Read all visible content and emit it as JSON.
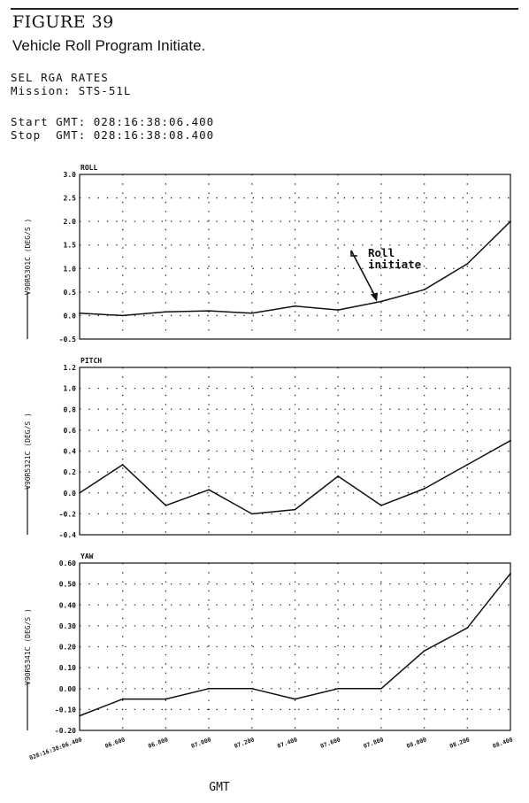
{
  "figure": {
    "number": "FIGURE 39",
    "caption": "Vehicle Roll Program Initiate."
  },
  "header": {
    "title": "SEL RGA RATES",
    "mission": "Mission: STS-51L",
    "start": "Start GMT: 028:16:38:06.400",
    "stop": "Stop  GMT: 028:16:38:08.400"
  },
  "chart_data": [
    {
      "type": "line",
      "title": "ROLL",
      "ylabel": "V90R5301C (DEG/S   )",
      "ylim": [
        -0.5,
        3.0
      ],
      "y_ticks": [
        "3.0",
        "2.5",
        "2.0",
        "1.5",
        "1.0",
        "0.5",
        "0.0",
        "-0.5"
      ],
      "x": [
        0,
        0.2,
        0.4,
        0.6,
        0.8,
        1.0,
        1.2,
        1.4,
        1.6,
        1.8,
        2.0
      ],
      "values": [
        0.05,
        0.0,
        0.08,
        0.1,
        0.05,
        0.2,
        0.12,
        0.3,
        0.55,
        1.1,
        2.0
      ],
      "grid": true,
      "annotation": {
        "line1": "Roll",
        "line2": "initiate",
        "x": 1.38,
        "y": 0.3
      }
    },
    {
      "type": "line",
      "title": "PITCH",
      "ylabel": "V90R5321C (DEG/S   )",
      "ylim": [
        -0.4,
        1.2
      ],
      "y_ticks": [
        "1.2",
        "1.0",
        "0.8",
        "0.6",
        "0.4",
        "0.2",
        "0.0",
        "-0.2",
        "-0.4"
      ],
      "x": [
        0,
        0.2,
        0.4,
        0.6,
        0.8,
        1.0,
        1.2,
        1.4,
        1.6,
        1.8,
        2.0
      ],
      "values": [
        0.0,
        0.27,
        -0.12,
        0.03,
        -0.2,
        -0.16,
        0.16,
        -0.12,
        0.04,
        0.27,
        0.5
      ],
      "grid": true
    },
    {
      "type": "line",
      "title": "YAW",
      "ylabel": "V90R5341C (DEG/S   )",
      "ylim": [
        -0.2,
        0.6
      ],
      "y_ticks": [
        "0.60",
        "0.50",
        "0.40",
        "0.30",
        "0.20",
        "0.10",
        "0.00",
        "-0.10",
        "-0.20"
      ],
      "x": [
        0,
        0.2,
        0.4,
        0.6,
        0.8,
        1.0,
        1.2,
        1.4,
        1.6,
        1.8,
        2.0
      ],
      "values": [
        -0.13,
        -0.05,
        -0.05,
        0.0,
        0.0,
        -0.05,
        0.0,
        0.0,
        0.18,
        0.29,
        0.55
      ],
      "grid": true,
      "xlabel": "GMT",
      "x_tick_labels": [
        "028:16:38:06.400",
        "06.600",
        "06.800",
        "07.000",
        "07.200",
        "07.400",
        "07.600",
        "07.800",
        "08.000",
        "08.200",
        "08.400"
      ]
    }
  ]
}
